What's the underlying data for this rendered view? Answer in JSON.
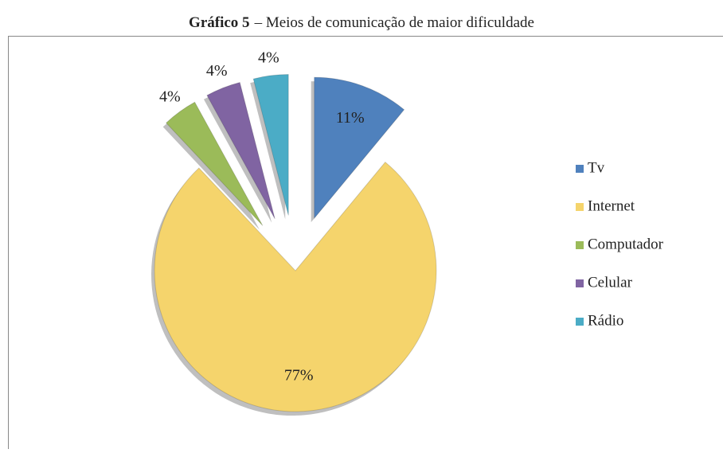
{
  "chart_data": {
    "type": "pie",
    "title_bold": "Gráfico 5",
    "title": "– Meios de comunicação de maior dificuldade",
    "categories": [
      "Tv",
      "Internet",
      "Computador",
      "Celular",
      "Rádio"
    ],
    "values": [
      11,
      77,
      4,
      4,
      4
    ],
    "value_labels": [
      "11%",
      "77%",
      "4%",
      "4%",
      "4%"
    ],
    "colors": [
      "#4f81bd",
      "#f5d46c",
      "#9bbb59",
      "#8064a2",
      "#4bacc6"
    ],
    "legend": "right"
  }
}
